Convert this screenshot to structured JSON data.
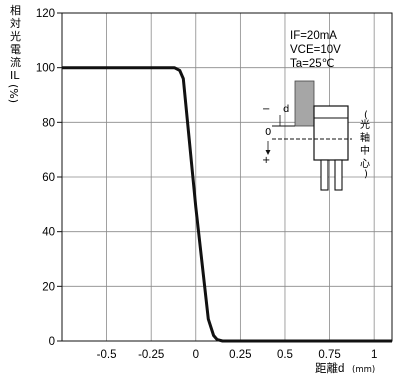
{
  "chart_data": {
    "type": "line",
    "ylabel": "相対光電流IL(%)",
    "xlabel": "距離d",
    "xlabel_unit": "(mm)",
    "xlim": [
      -0.75,
      1.1
    ],
    "ylim": [
      0,
      120
    ],
    "x_ticks": [
      -0.5,
      -0.25,
      0,
      0.25,
      0.5,
      0.75,
      1
    ],
    "x_tick_labels": [
      "-0.5",
      "-0.25",
      "0",
      "0.25",
      "0.5",
      "0.75",
      "1"
    ],
    "y_ticks": [
      0,
      20,
      40,
      60,
      80,
      100,
      120
    ],
    "y_tick_labels": [
      "0",
      "20",
      "40",
      "60",
      "80",
      "100",
      "120"
    ],
    "grid": true,
    "conditions": [
      "IF=20mA",
      "VCE=10V",
      "Ta=25℃"
    ],
    "series": [
      {
        "x": [
          -0.75,
          -0.5,
          -0.25,
          -0.12,
          -0.09,
          -0.07,
          0,
          0.07,
          0.1,
          0.12,
          0.15,
          0.2,
          0.5,
          1.1
        ],
        "values": [
          100,
          100,
          100,
          100,
          99,
          96,
          49,
          8,
          2,
          0.5,
          0,
          0,
          0,
          0
        ]
      }
    ]
  },
  "inset": {
    "d_label": "d",
    "zero_label": "0",
    "minus_label": "−",
    "plus_label": "+",
    "axis_text": "(光軸中心)"
  }
}
